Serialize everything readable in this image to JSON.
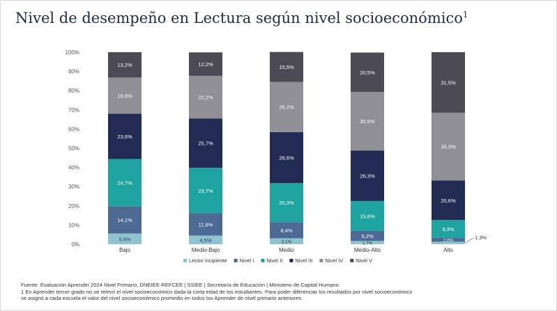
{
  "title": "Nivel de desempeño en Lectura según nivel socioeconómico",
  "title_sup": "1",
  "footer": {
    "source": "Fuente: Evaluación Aprender 2024 Nivel Primario, DNEIEE-REFCEE | SSIEE | Secretaría de Educación | Ministerio de Capital Humano",
    "note_line1": "1 En Aprender tercer grado no se relevó el nivel socioeconómico dada la corta edad de los estudiantes. Para poder diferenciar los resultados por nivel socioeconómico",
    "note_line2": "se asignó a cada escuela el valor del nivel socioeconómico promedio en todos los Aprender de nivel primario anteriores."
  },
  "chart_data": {
    "type": "bar",
    "stacked": true,
    "categories": [
      "Bajo",
      "Medio-Bajo",
      "Medio",
      "Medio-Alto",
      "Alto"
    ],
    "series": [
      {
        "name": "Lector incipiente",
        "color": "#8ec3cf",
        "values": [
          5.6,
          4.5,
          3.1,
          1.7,
          1.3
        ],
        "labels": [
          "5,6%",
          "4,5%",
          "3,1%",
          "1,7%",
          "1,3%"
        ]
      },
      {
        "name": "Nivel I",
        "color": "#4d6a94",
        "values": [
          14.1,
          11.6,
          8.4,
          5.2,
          2.0
        ],
        "labels": [
          "14,1%",
          "11,6%",
          "8,4%",
          "5,2%",
          "2,0%"
        ]
      },
      {
        "name": "Nivel II",
        "color": "#1fa3a0",
        "values": [
          24.7,
          23.7,
          20.3,
          15.6,
          9.3
        ],
        "labels": [
          "24,7%",
          "23,7%",
          "20,3%",
          "15,6%",
          "9,3%"
        ]
      },
      {
        "name": "Nivel III",
        "color": "#222b54",
        "values": [
          23.6,
          25.7,
          26.6,
          26.3,
          20.6
        ],
        "labels": [
          "23,6%",
          "25,7%",
          "26,6%",
          "26,3%",
          "20,6%"
        ]
      },
      {
        "name": "Nivel IV",
        "color": "#8f8f95",
        "values": [
          18.8,
          22.2,
          26.2,
          30.5,
          35.3
        ],
        "labels": [
          "18,8%",
          "22,2%",
          "26,2%",
          "30,5%",
          "35,3%"
        ]
      },
      {
        "name": "Nivel V",
        "color": "#4b4a55",
        "values": [
          13.2,
          12.2,
          15.5,
          20.5,
          31.5
        ],
        "labels": [
          "13,2%",
          "12,2%",
          "15,5%",
          "20,5%",
          "31,5%"
        ]
      }
    ],
    "ylim": [
      0,
      100
    ],
    "yticks": [
      "0%",
      "10%",
      "20%",
      "30%",
      "40%",
      "50%",
      "60%",
      "70%",
      "80%",
      "90%",
      "100%"
    ],
    "callout": {
      "category": "Alto",
      "label": "1,3%"
    },
    "legend_position": "bottom",
    "grid": false
  }
}
